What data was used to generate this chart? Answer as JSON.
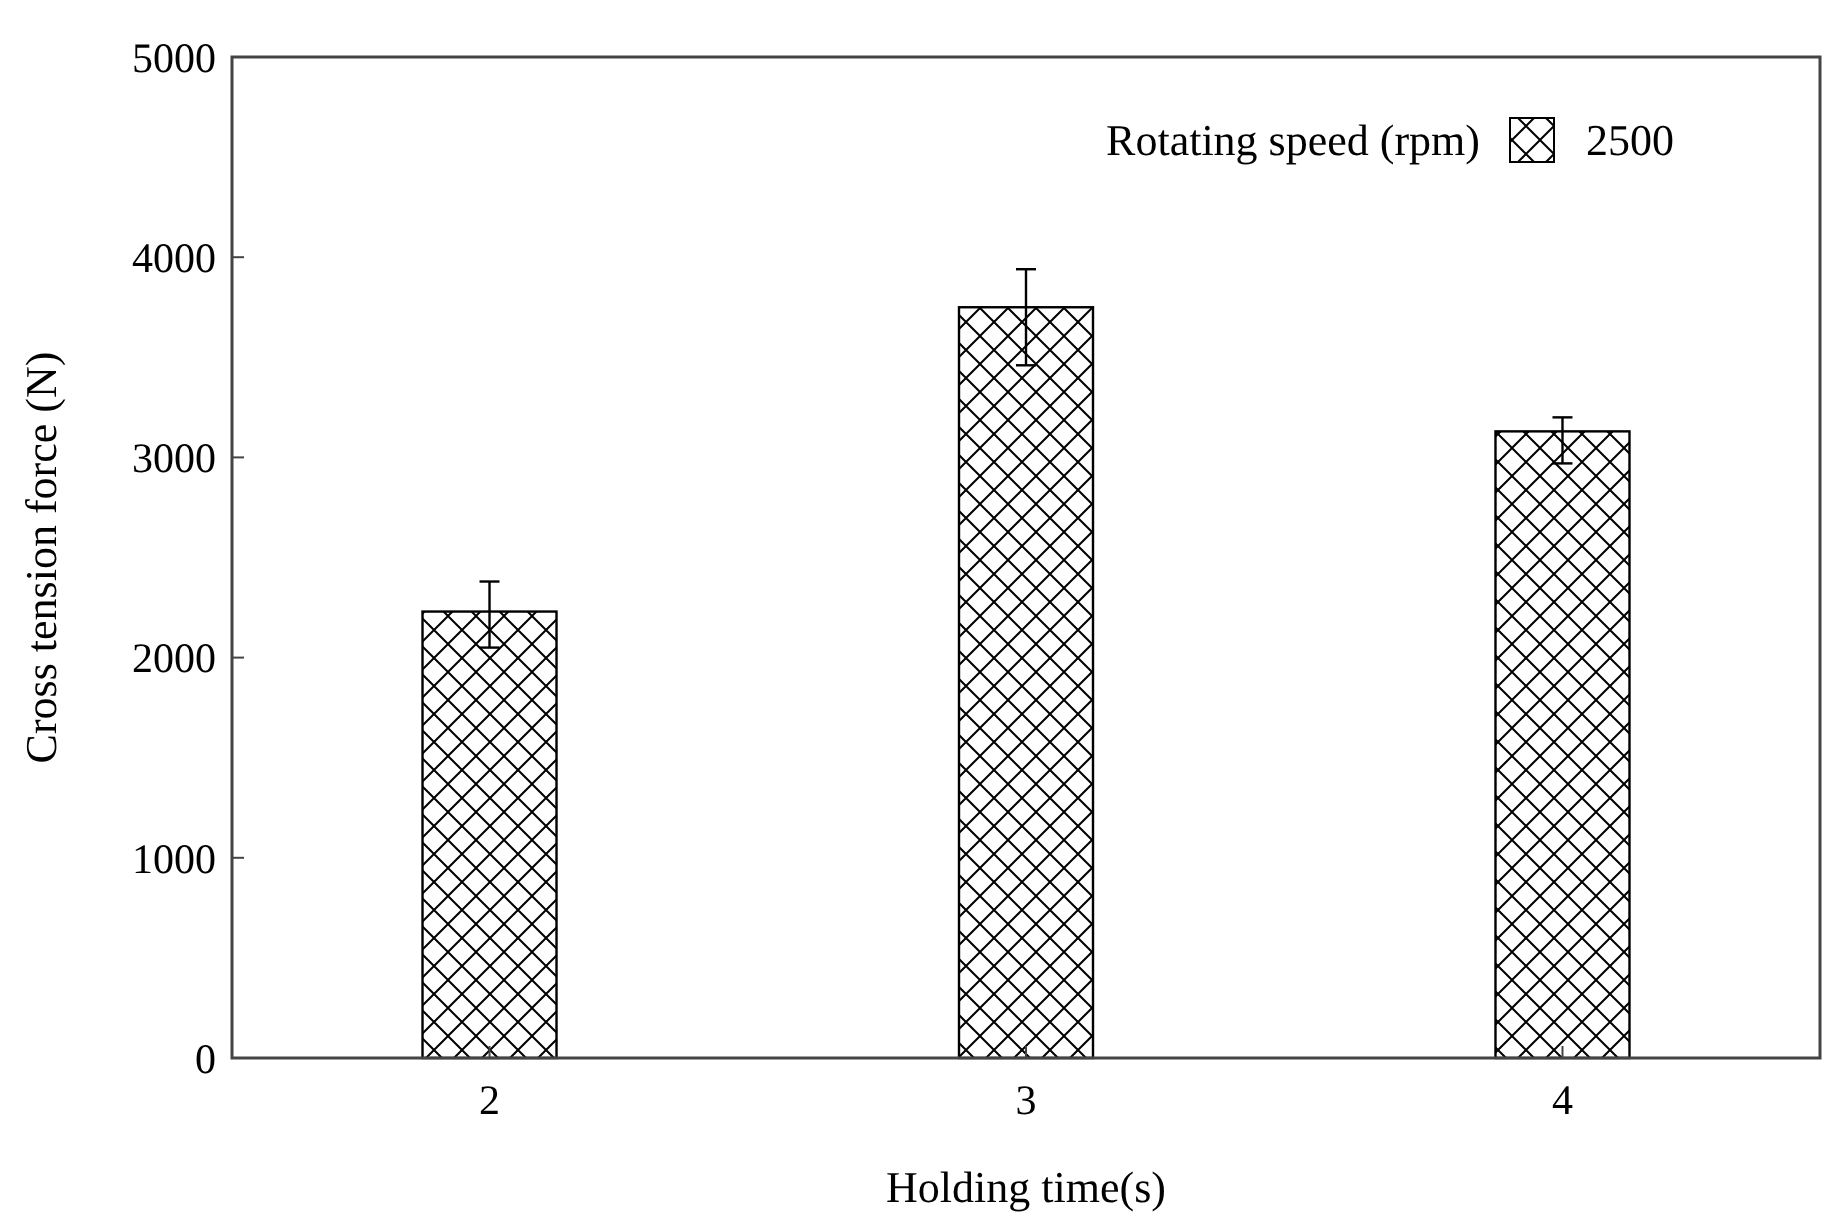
{
  "chart_data": {
    "type": "bar",
    "xlabel": "Holding time(s)",
    "ylabel": "Cross tension force (N)",
    "legend_title": "Rotating speed (rpm)",
    "categories": [
      "2",
      "3",
      "4"
    ],
    "series": [
      {
        "name": "2500",
        "color": "#000000",
        "values": [
          2230,
          3750,
          3130
        ],
        "errors": [
          [
            2050,
            2380
          ],
          [
            3460,
            3940
          ],
          [
            2970,
            3200
          ]
        ]
      }
    ],
    "ylim": [
      0,
      5000
    ],
    "yticks": [
      0,
      1000,
      2000,
      3000,
      4000,
      5000
    ],
    "grid": false,
    "legend": "top right"
  }
}
